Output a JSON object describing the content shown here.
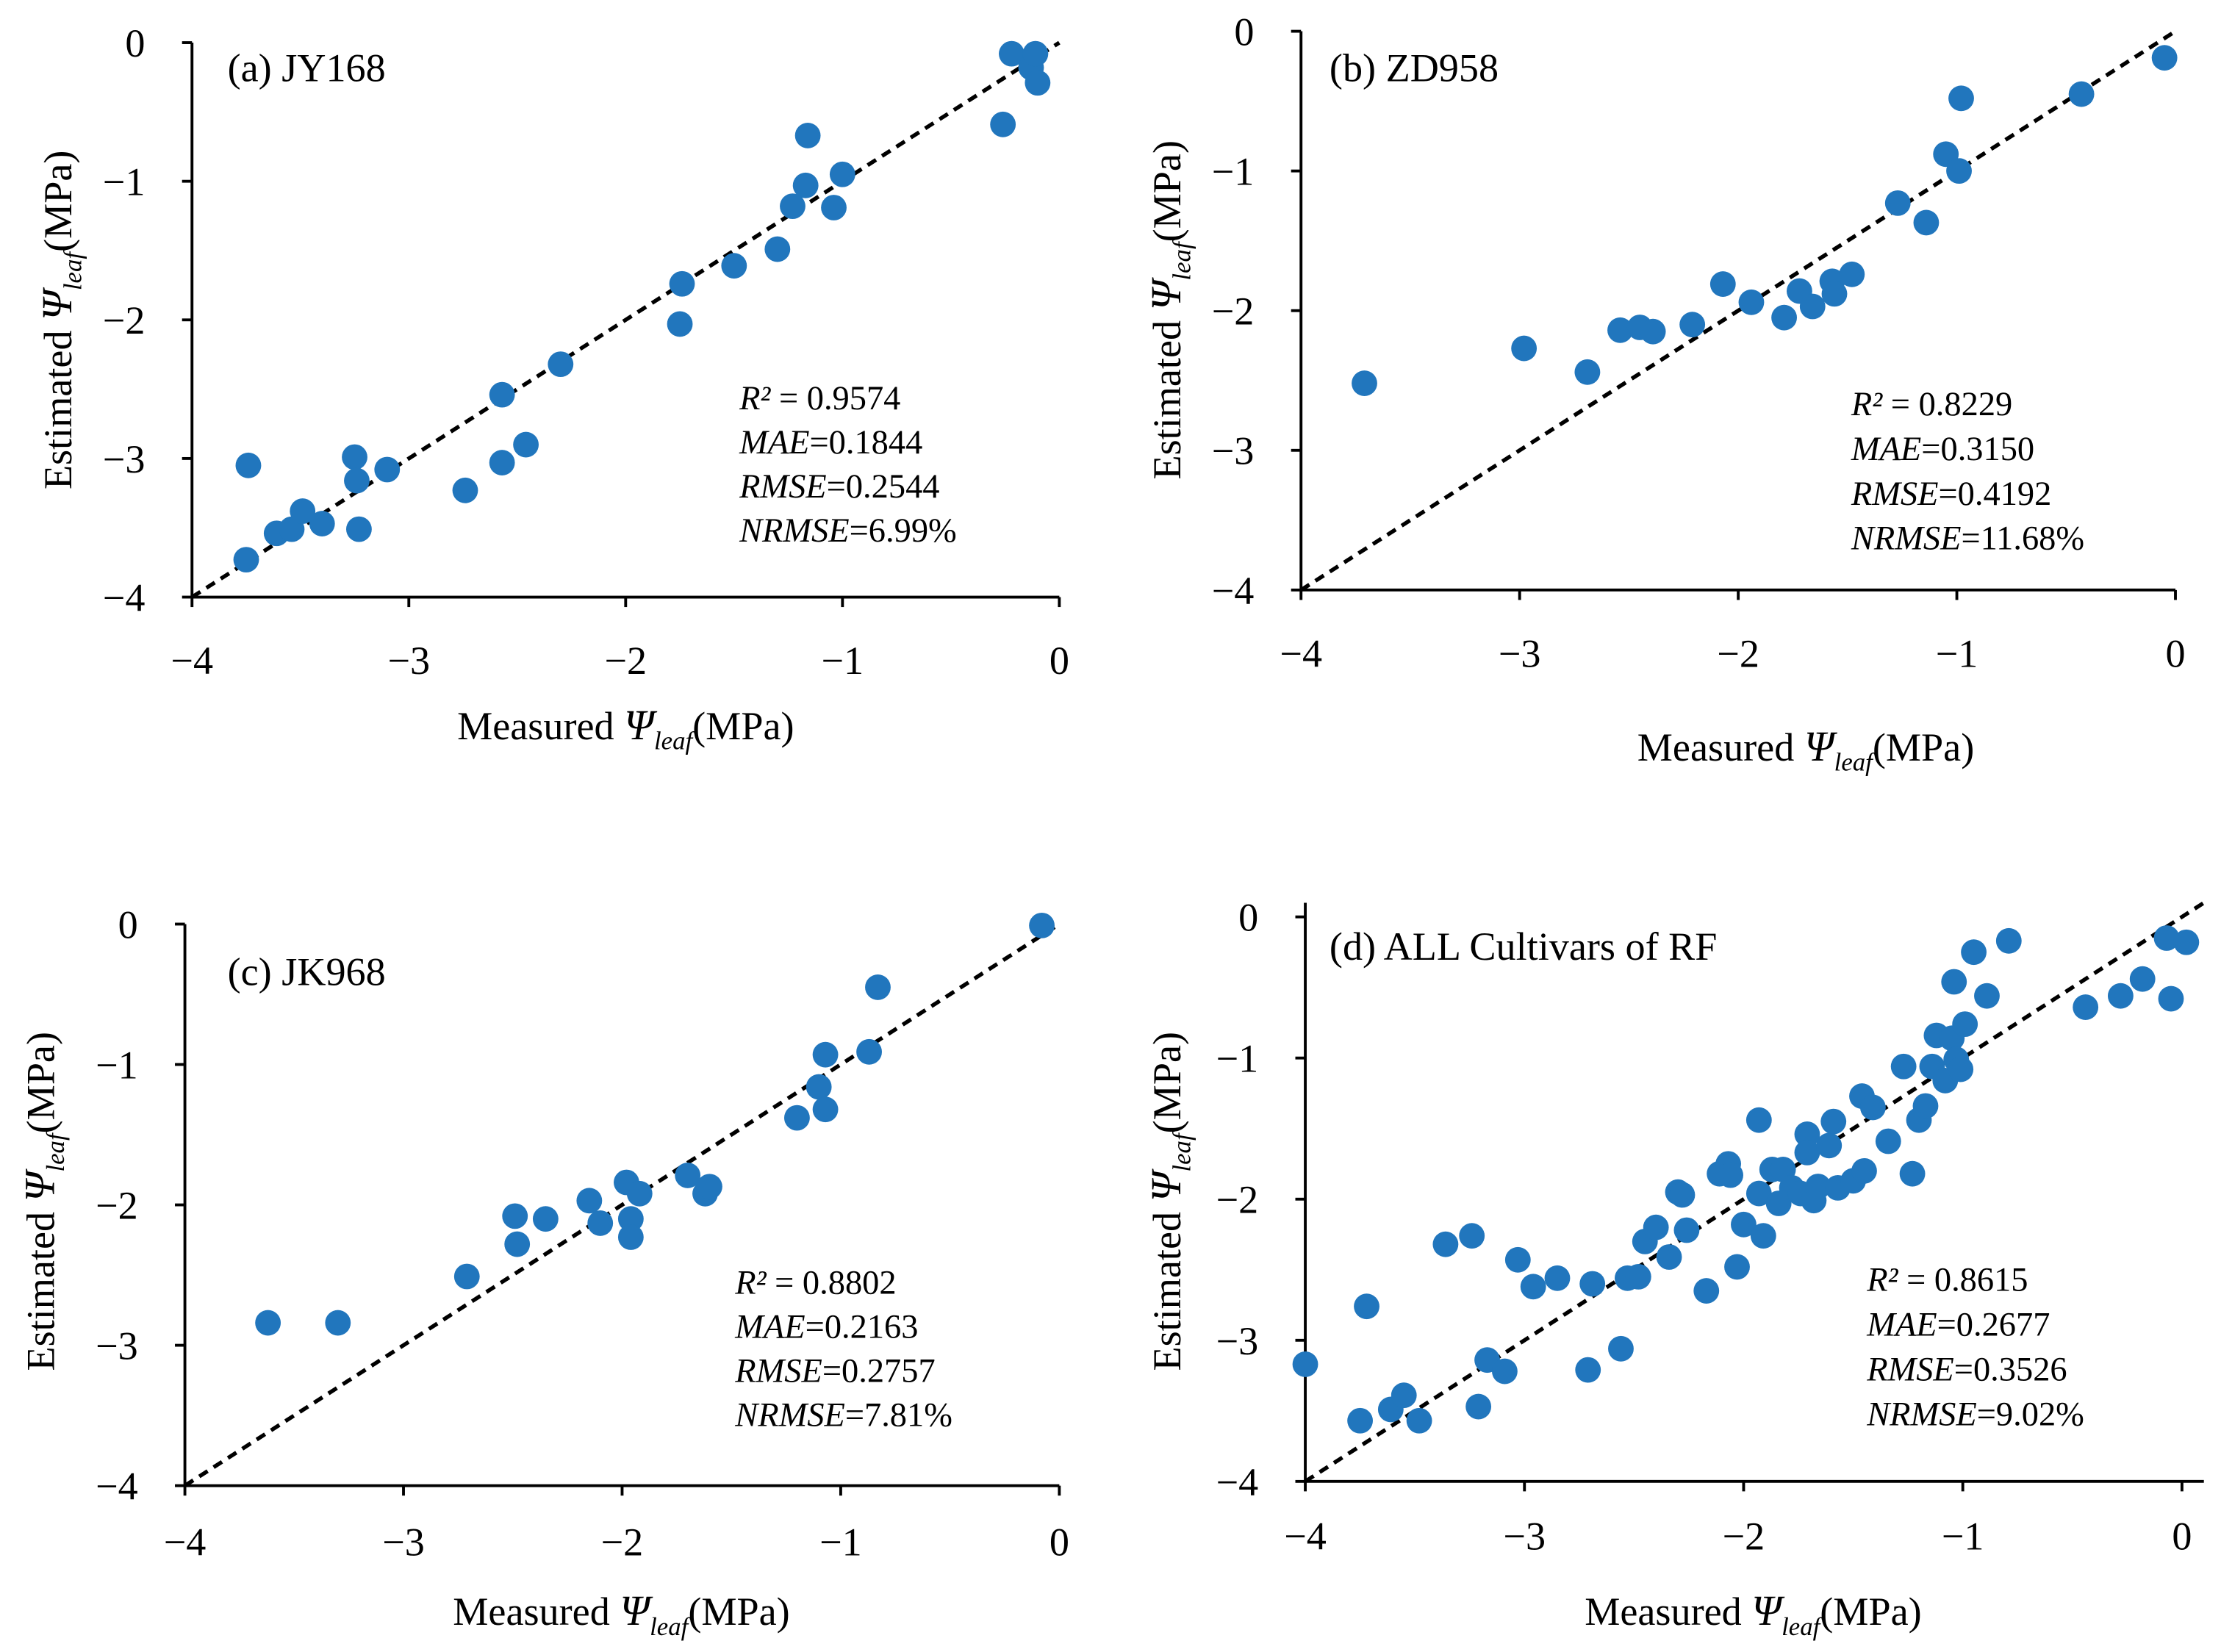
{
  "chart_data": [
    {
      "type": "scatter",
      "title": "(a) JY168",
      "xlabel": {
        "prefix": "Measured ",
        "symbol": "Ψ",
        "sub": "leaf",
        "suffix": "(MPa)"
      },
      "ylabel": {
        "prefix": "Estimated ",
        "symbol": "Ψ",
        "sub": "leaf",
        "suffix": "(MPa)"
      },
      "xlim": [
        -4,
        0
      ],
      "ylim": [
        -4,
        0
      ],
      "xticks": [
        -4,
        -3,
        -2,
        -1,
        0
      ],
      "xtick_labels": [
        "−4",
        "−3",
        "−2",
        "−1",
        "0"
      ],
      "yticks": [
        0,
        -1,
        -2,
        -3,
        -4
      ],
      "ytick_labels": [
        "0",
        "−1",
        "−2",
        "−3",
        "−4"
      ],
      "reference_line": {
        "style": "dashed",
        "from": [
          -4,
          -4
        ],
        "to": [
          0,
          0
        ]
      },
      "marker_color": "#2176BD",
      "x": [
        -3.75,
        -3.74,
        -3.61,
        -3.54,
        -3.49,
        -3.4,
        -3.25,
        -3.24,
        -3.23,
        -3.1,
        -2.74,
        -2.57,
        -2.57,
        -2.46,
        -2.3,
        -1.75,
        -1.74,
        -1.5,
        -1.3,
        -1.23,
        -1.17,
        -1.16,
        -1.04,
        -1.0,
        -0.26,
        -0.22,
        -0.13,
        -0.11,
        -0.1
      ],
      "y": [
        -3.73,
        -3.05,
        -3.54,
        -3.51,
        -3.38,
        -3.47,
        -2.99,
        -3.16,
        -3.51,
        -3.08,
        -3.23,
        -3.03,
        -2.54,
        -2.9,
        -2.32,
        -2.03,
        -1.74,
        -1.61,
        -1.49,
        -1.18,
        -1.03,
        -0.67,
        -1.19,
        -0.95,
        -0.59,
        -0.08,
        -0.18,
        -0.08,
        -0.29
      ],
      "stats": [
        {
          "label": "R²",
          "value": " = 0.9574"
        },
        {
          "label": "MAE",
          "value": "=0.1844"
        },
        {
          "label": "RMSE",
          "value": "=0.2544"
        },
        {
          "label": "NRMSE",
          "value": "=6.99%"
        }
      ]
    },
    {
      "type": "scatter",
      "title": "(b) ZD958",
      "xlabel": {
        "prefix": "Measured ",
        "symbol": "Ψ",
        "sub": "leaf",
        "suffix": "(MPa)"
      },
      "ylabel": {
        "prefix": "Estimated ",
        "symbol": "Ψ",
        "sub": "leaf",
        "suffix": "(MPa)"
      },
      "xlim": [
        -4,
        0
      ],
      "ylim": [
        -4,
        0
      ],
      "xticks": [
        -4,
        -3,
        -2,
        -1,
        0
      ],
      "xtick_labels": [
        "−4",
        "−3",
        "−2",
        "−1",
        "0"
      ],
      "yticks": [
        0,
        -1,
        -2,
        -3,
        -4
      ],
      "ytick_labels": [
        "0",
        "−1",
        "−2",
        "−3",
        "−4"
      ],
      "reference_line": {
        "style": "dashed",
        "from": [
          -4,
          -4
        ],
        "to": [
          0,
          0
        ]
      },
      "marker_color": "#2176BD",
      "x": [
        -3.71,
        -2.98,
        -2.69,
        -2.54,
        -2.45,
        -2.39,
        -2.21,
        -2.07,
        -1.94,
        -1.79,
        -1.72,
        -1.66,
        -1.57,
        -1.56,
        -1.48,
        -1.27,
        -1.14,
        -1.05,
        -0.99,
        -0.98,
        -0.43,
        -0.05
      ],
      "y": [
        -2.52,
        -2.27,
        -2.44,
        -2.14,
        -2.12,
        -2.15,
        -2.1,
        -1.81,
        -1.94,
        -2.05,
        -1.86,
        -1.97,
        -1.79,
        -1.88,
        -1.74,
        -1.23,
        -1.37,
        -0.88,
        -1.0,
        -0.48,
        -0.45,
        -0.19
      ],
      "stats": [
        {
          "label": "R²",
          "value": " = 0.8229"
        },
        {
          "label": "MAE",
          "value": "=0.3150"
        },
        {
          "label": "RMSE",
          "value": "=0.4192"
        },
        {
          "label": "NRMSE",
          "value": "=11.68%"
        }
      ]
    },
    {
      "type": "scatter",
      "title": "(c) JK968",
      "xlabel": {
        "prefix": "Measured ",
        "symbol": "Ψ",
        "sub": "leaf",
        "suffix": "(MPa)"
      },
      "ylabel": {
        "prefix": "Estimated ",
        "symbol": "Ψ",
        "sub": "leaf",
        "suffix": "(MPa)"
      },
      "xlim": [
        -4,
        0
      ],
      "ylim": [
        -4,
        0
      ],
      "xticks": [
        -4,
        -3,
        -2,
        -1,
        0
      ],
      "xtick_labels": [
        "−4",
        "−3",
        "−2",
        "−1",
        "0"
      ],
      "yticks": [
        0,
        -1,
        -2,
        -3,
        -4
      ],
      "ytick_labels": [
        "0",
        "−1",
        "−2",
        "−3",
        "−4"
      ],
      "reference_line": {
        "style": "dashed",
        "from": [
          -4,
          -4
        ],
        "to": [
          0,
          0
        ]
      },
      "marker_color": "#2176BD",
      "x": [
        -3.62,
        -3.3,
        -2.71,
        -2.49,
        -2.48,
        -2.35,
        -2.15,
        -2.1,
        -1.98,
        -1.96,
        -1.96,
        -1.92,
        -1.7,
        -1.62,
        -1.6,
        -1.2,
        -1.1,
        -1.07,
        -1.07,
        -0.87,
        -0.83,
        -0.08
      ],
      "y": [
        -2.84,
        -2.84,
        -2.51,
        -2.08,
        -2.28,
        -2.1,
        -1.97,
        -2.13,
        -1.84,
        -2.1,
        -2.23,
        -1.92,
        -1.79,
        -1.92,
        -1.87,
        -1.38,
        -1.16,
        -1.32,
        -0.93,
        -0.91,
        -0.45,
        -0.01
      ],
      "stats": [
        {
          "label": "R²",
          "value": " = 0.8802"
        },
        {
          "label": "MAE",
          "value": "=0.2163"
        },
        {
          "label": "RMSE",
          "value": "=0.2757"
        },
        {
          "label": "NRMSE",
          "value": "=7.81%"
        }
      ]
    },
    {
      "type": "scatter",
      "title": "(d) ALL Cultivars of RF",
      "xlabel": {
        "prefix": "Measured ",
        "symbol": "Ψ",
        "sub": "leaf",
        "suffix": "(MPa)"
      },
      "ylabel": {
        "prefix": "Estimated ",
        "symbol": "Ψ",
        "sub": "leaf",
        "suffix": "(MPa)"
      },
      "xlim": [
        -4,
        0.1
      ],
      "ylim": [
        -4,
        0.1
      ],
      "xticks": [
        -4,
        -3,
        -2,
        -1,
        0
      ],
      "xtick_labels": [
        "−4",
        "−3",
        "−2",
        "−1",
        "0"
      ],
      "yticks": [
        0,
        -1,
        -2,
        -3,
        -4
      ],
      "ytick_labels": [
        "0",
        "−1",
        "−2",
        "−3",
        "−4"
      ],
      "reference_line": {
        "style": "dashed",
        "from": [
          -4,
          -4
        ],
        "to": [
          0.1,
          0.1
        ]
      },
      "marker_color": "#2176BD",
      "x": [
        -4.0,
        -3.75,
        -3.72,
        -3.61,
        -3.55,
        -3.48,
        -3.36,
        -3.24,
        -3.21,
        -3.17,
        -3.09,
        -3.03,
        -2.96,
        -2.85,
        -2.71,
        -2.69,
        -2.56,
        -2.53,
        -2.48,
        -2.45,
        -2.4,
        -2.34,
        -2.3,
        -2.28,
        -2.26,
        -2.17,
        -2.11,
        -2.07,
        -2.06,
        -2.03,
        -2.0,
        -1.93,
        -1.91,
        -1.93,
        -1.87,
        -1.84,
        -1.82,
        -1.78,
        -1.74,
        -1.71,
        -1.71,
        -1.68,
        -1.66,
        -1.61,
        -1.59,
        -1.57,
        -1.5,
        -1.46,
        -1.45,
        -1.41,
        -1.34,
        -1.27,
        -1.23,
        -1.2,
        -1.17,
        -1.14,
        -1.12,
        -1.08,
        -1.05,
        -1.04,
        -1.03,
        -1.01,
        -0.99,
        -0.95,
        -0.89,
        -0.79,
        -0.44,
        -0.28,
        -0.18,
        -0.07,
        -0.05,
        0.02
      ],
      "y": [
        -3.17,
        -3.57,
        -2.76,
        -3.49,
        -3.39,
        -3.57,
        -2.32,
        -2.26,
        -3.47,
        -3.14,
        -3.22,
        -2.43,
        -2.62,
        -2.56,
        -3.21,
        -2.6,
        -3.06,
        -2.56,
        -2.55,
        -2.3,
        -2.2,
        -2.41,
        -1.95,
        -1.97,
        -2.22,
        -2.65,
        -1.82,
        -1.75,
        -1.83,
        -2.48,
        -2.18,
        -1.44,
        -2.26,
        -1.96,
        -1.79,
        -2.03,
        -1.79,
        -1.92,
        -1.96,
        -1.54,
        -1.67,
        -2.01,
        -1.91,
        -1.62,
        -1.45,
        -1.92,
        -1.87,
        -1.27,
        -1.8,
        -1.35,
        -1.59,
        -1.06,
        -1.82,
        -1.44,
        -1.34,
        -1.06,
        -0.84,
        -1.16,
        -0.86,
        -0.46,
        -1.01,
        -1.08,
        -0.76,
        -0.25,
        -0.56,
        -0.17,
        -0.64,
        -0.56,
        -0.44,
        -0.15,
        -0.58,
        -0.18
      ],
      "stats": [
        {
          "label": "R²",
          "value": " = 0.8615"
        },
        {
          "label": "MAE",
          "value": "=0.2677"
        },
        {
          "label": "RMSE",
          "value": "=0.3526"
        },
        {
          "label": "NRMSE",
          "value": "=9.02%"
        }
      ]
    }
  ]
}
